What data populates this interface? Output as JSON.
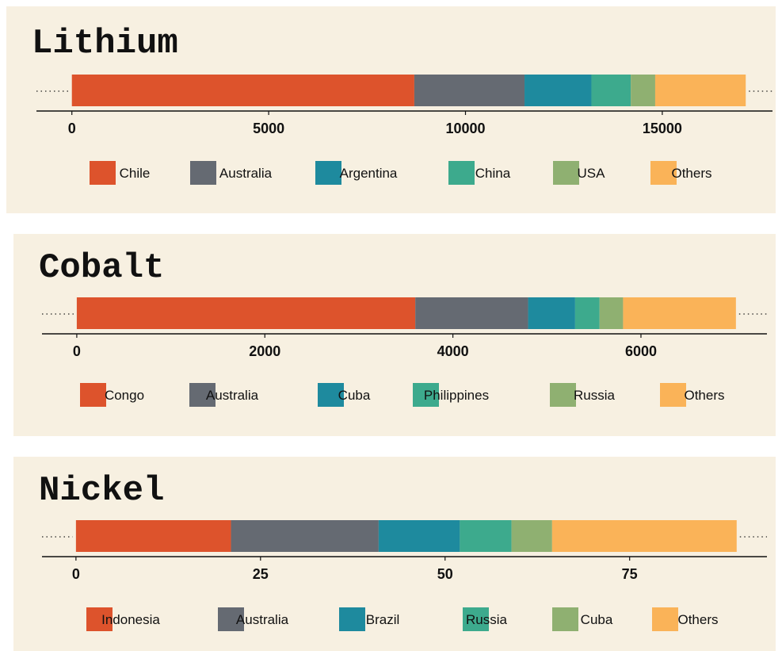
{
  "chart_data": [
    {
      "type": "bar",
      "orientation": "horizontal-stacked",
      "title": "Lithium",
      "series": [
        {
          "name": "Chile",
          "values": [
            8700
          ]
        },
        {
          "name": "Australia",
          "values": [
            2800
          ]
        },
        {
          "name": "Argentina",
          "values": [
            1700
          ]
        },
        {
          "name": "China",
          "values": [
            1000
          ]
        },
        {
          "name": "USA",
          "values": [
            620
          ]
        },
        {
          "name": "Others",
          "values": [
            2300
          ]
        }
      ],
      "xticks": [
        "0",
        "5000",
        "10000",
        "15000"
      ],
      "xtick_values": [
        0,
        5000,
        10000,
        15000
      ],
      "xlim": [
        -900,
        17800
      ],
      "legend": "bottom"
    },
    {
      "type": "bar",
      "orientation": "horizontal-stacked",
      "title": "Cobalt",
      "series": [
        {
          "name": "Congo",
          "values": [
            3600
          ]
        },
        {
          "name": "Australia",
          "values": [
            1200
          ]
        },
        {
          "name": "Cuba",
          "values": [
            500
          ]
        },
        {
          "name": "Philippines",
          "values": [
            260
          ]
        },
        {
          "name": "Russia",
          "values": [
            250
          ]
        },
        {
          "name": "Others",
          "values": [
            1200
          ]
        }
      ],
      "xticks": [
        "0",
        "2000",
        "4000",
        "6000"
      ],
      "xtick_values": [
        0,
        2000,
        4000,
        6000
      ],
      "xlim": [
        -370,
        7340
      ],
      "legend": "bottom"
    },
    {
      "type": "bar",
      "orientation": "horizontal-stacked",
      "title": "Nickel",
      "series": [
        {
          "name": "Indonesia",
          "values": [
            21
          ]
        },
        {
          "name": "Australia",
          "values": [
            20
          ]
        },
        {
          "name": "Brazil",
          "values": [
            11
          ]
        },
        {
          "name": "Russia",
          "values": [
            7
          ]
        },
        {
          "name": "Cuba",
          "values": [
            5.5
          ]
        },
        {
          "name": "Others",
          "values": [
            25
          ]
        }
      ],
      "xticks": [
        "0",
        "25",
        "50",
        "75"
      ],
      "xtick_values": [
        0,
        25,
        50,
        75
      ],
      "xlim": [
        -4.6,
        93.6
      ],
      "legend": "bottom"
    }
  ],
  "colors": [
    "#dd532c",
    "#656a72",
    "#1e8a9e",
    "#3daa8d",
    "#8fb071",
    "#fab358"
  ],
  "background": "#f7f0e1"
}
